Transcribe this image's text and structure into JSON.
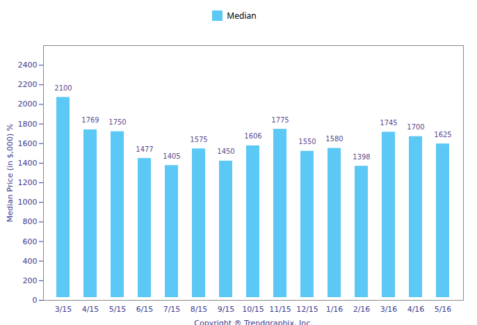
{
  "chart_data": {
    "type": "bar",
    "xlabel": "Copyright ® Trendgraphix, Inc.",
    "ylabel": "Median Price (in $,000) %",
    "categories": [
      "3/15",
      "4/15",
      "5/15",
      "6/15",
      "7/15",
      "8/15",
      "9/15",
      "10/15",
      "11/15",
      "12/15",
      "1/16",
      "2/16",
      "3/16",
      "4/16",
      "5/16"
    ],
    "series": [
      {
        "name": "Median",
        "color": "#5BC8F5",
        "values": [
          2100,
          1769,
          1750,
          1477,
          1405,
          1575,
          1450,
          1606,
          1775,
          1550,
          1580,
          1398,
          1745,
          1700,
          1625
        ]
      }
    ],
    "ylim": [
      0,
      2600
    ],
    "yticks": [
      0,
      200,
      400,
      600,
      800,
      1000,
      1200,
      1400,
      1600,
      1800,
      2000,
      2200,
      2400
    ],
    "data_labels": true,
    "grid": false,
    "legend": "top"
  }
}
